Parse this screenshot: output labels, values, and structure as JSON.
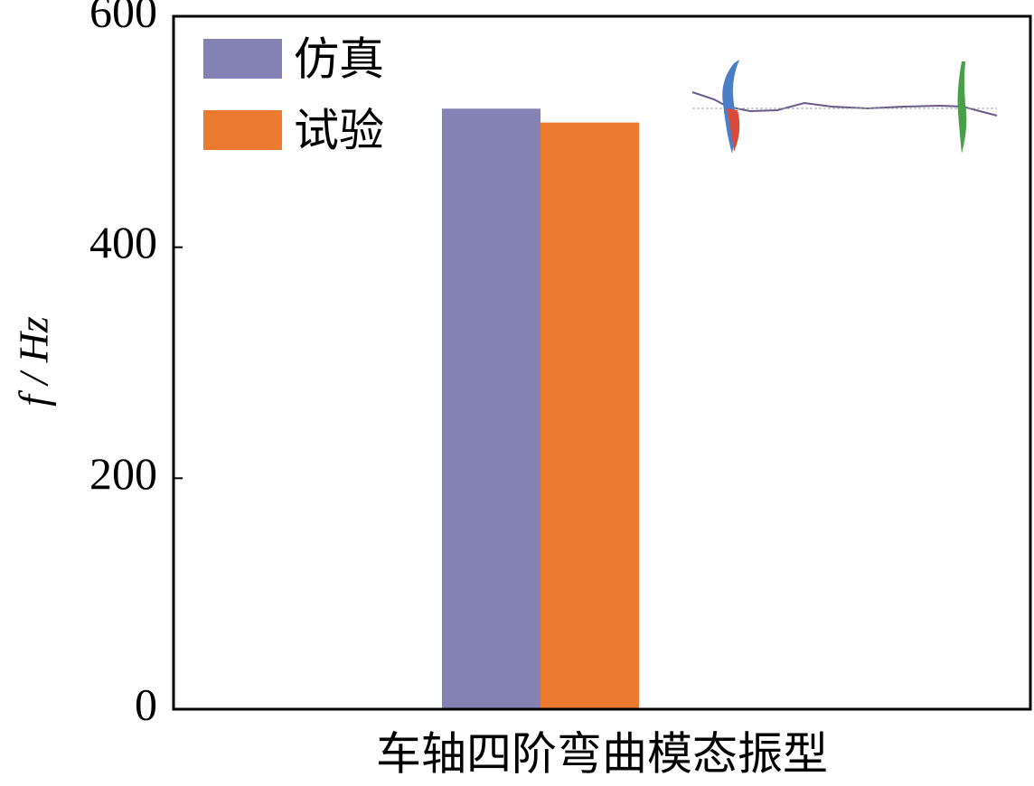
{
  "chart_data": {
    "type": "bar",
    "ylabel": "f / Hz",
    "categories": [
      "车轴四阶弯曲模态振型"
    ],
    "series": [
      {
        "name": "仿真",
        "color": "#8482b4",
        "values": [
          520
        ]
      },
      {
        "name": "试验",
        "color": "#ec7a31",
        "values": [
          508
        ]
      }
    ],
    "ylim": [
      0,
      600
    ],
    "yticks": [
      0,
      200,
      400,
      600
    ]
  }
}
